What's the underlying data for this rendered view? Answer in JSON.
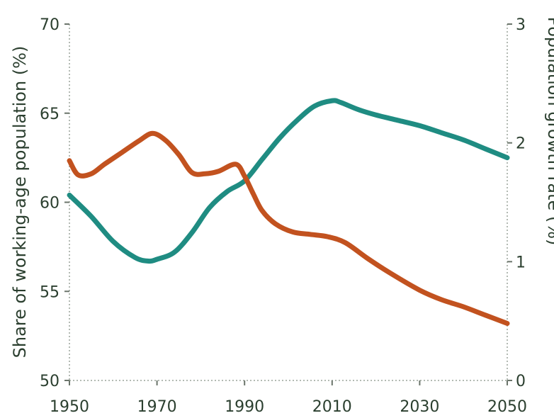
{
  "chart_data": {
    "type": "line",
    "x_ticks": [
      1950,
      1970,
      1990,
      2010,
      2030,
      2050
    ],
    "xlim": [
      1950,
      2050
    ],
    "y_left": {
      "label": "Share of working-age population (%)",
      "ticks": [
        50,
        55,
        60,
        65,
        70
      ],
      "ylim": [
        50,
        70
      ]
    },
    "y_right": {
      "label": "Population growth rate (%)",
      "ticks": [
        0,
        1,
        2,
        3
      ],
      "ylim": [
        0,
        3
      ]
    },
    "grid": false,
    "series": [
      {
        "axis": "left",
        "color": "#1f8c82",
        "x": [
          1950,
          1955,
          1960,
          1965,
          1968,
          1970,
          1974,
          1978,
          1982,
          1986,
          1990,
          1994,
          1998,
          2002,
          2006,
          2010,
          2012,
          2016,
          2020,
          2025,
          2030,
          2035,
          2040,
          2045,
          2050
        ],
        "values": [
          60.4,
          59.2,
          57.8,
          56.9,
          56.7,
          56.8,
          57.2,
          58.3,
          59.7,
          60.6,
          61.2,
          62.4,
          63.6,
          64.6,
          65.4,
          65.7,
          65.6,
          65.2,
          64.9,
          64.6,
          64.3,
          63.9,
          63.5,
          63.0,
          62.5
        ]
      },
      {
        "axis": "right",
        "color": "#c2521f",
        "x": [
          1950,
          1952,
          1955,
          1958,
          1962,
          1966,
          1969,
          1972,
          1975,
          1978,
          1981,
          1984,
          1988,
          1990,
          1992,
          1994,
          1997,
          2001,
          2005,
          2009,
          2013,
          2018,
          2023,
          2030,
          2035,
          2040,
          2045,
          2050
        ],
        "values": [
          1.85,
          1.73,
          1.74,
          1.82,
          1.92,
          2.02,
          2.08,
          2.02,
          1.9,
          1.75,
          1.74,
          1.76,
          1.82,
          1.72,
          1.57,
          1.43,
          1.32,
          1.25,
          1.23,
          1.21,
          1.16,
          1.03,
          0.91,
          0.76,
          0.68,
          0.62,
          0.55,
          0.48
        ]
      }
    ]
  }
}
